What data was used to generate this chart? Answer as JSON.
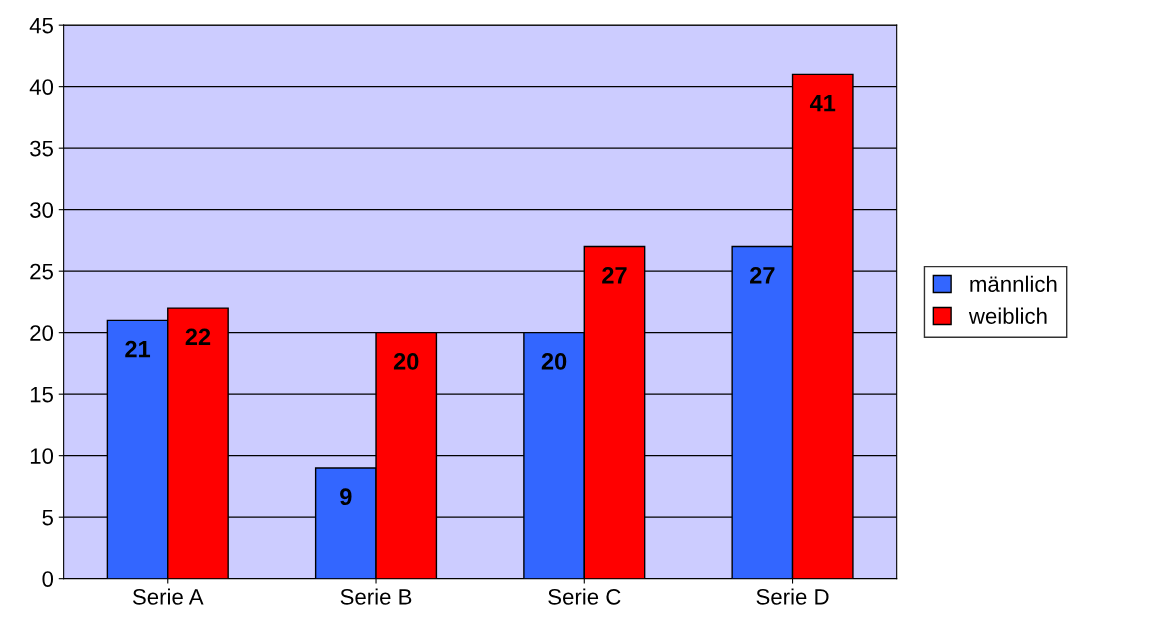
{
  "chart_data": {
    "type": "bar",
    "categories": [
      "Serie A",
      "Serie B",
      "Serie C",
      "Serie D"
    ],
    "series": [
      {
        "name": "männlich",
        "color": "#3366ff",
        "values": [
          21,
          9,
          20,
          27
        ]
      },
      {
        "name": "weiblich",
        "color": "#ff0000",
        "values": [
          22,
          20,
          27,
          41
        ]
      }
    ],
    "ylim": [
      0,
      45
    ],
    "yticks": [
      0,
      5,
      10,
      15,
      20,
      25,
      30,
      35,
      40,
      45
    ],
    "grid": "y",
    "legend": "right",
    "data_labels": true
  }
}
